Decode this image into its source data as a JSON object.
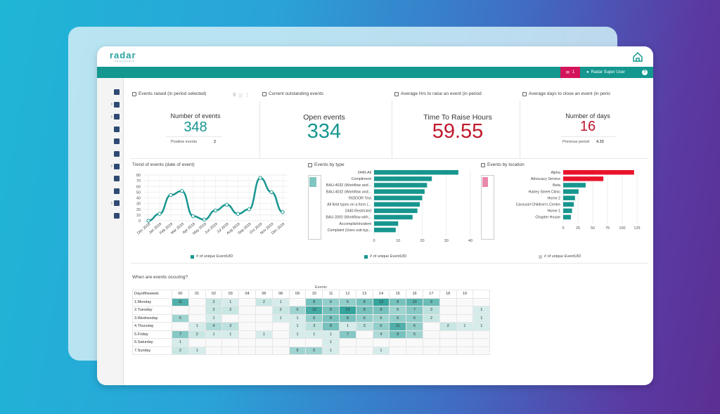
{
  "app": {
    "logo_text": "radar",
    "logo_sub": "healthcare",
    "user_label": "Radar Super User",
    "mail_count": "1"
  },
  "colors": {
    "teal": "#13978f",
    "accent": "#d4145a",
    "red_value": "#c0172b",
    "teal_value": "#17968f"
  },
  "sidebar_icons": [
    "dashboard-icon",
    "users-icon",
    "calendar-icon",
    "copy-icon",
    "bolt-icon",
    "checklist-icon",
    "mail-icon",
    "clock-icon",
    "book-icon",
    "bar-chart-icon",
    "settings-icon"
  ],
  "kpis": [
    {
      "title": "Events raised (in period selected)",
      "label": "Number of events",
      "value": "348",
      "sub_label": "Positive events",
      "sub_value": "2"
    },
    {
      "title": "Current outstanding events",
      "label": "Open events",
      "value": "334"
    },
    {
      "title": "Average Hrs to raise an event (in period",
      "label": "Time To Raise Hours",
      "value": "59.55"
    },
    {
      "title": "Average days to close an event (in perio",
      "label": "Number of days",
      "value": "16",
      "sub_label": "Previous period",
      "sub_value": "4.33"
    }
  ],
  "trend": {
    "title": "Trend of events (date of event)",
    "legend": "# of unique EventUID",
    "chart_data": {
      "type": "line",
      "categories": [
        "Dec 2018",
        "Jan 2019",
        "Feb 2019",
        "Mar 2019",
        "Apr 2019",
        "May 2019",
        "Jun 2019",
        "Jul 2019",
        "Aug 2019",
        "Sep 2019",
        "Oct 2019",
        "Nov 2019",
        "Dec 2019"
      ],
      "values": [
        0,
        12,
        45,
        52,
        8,
        2,
        18,
        28,
        12,
        20,
        75,
        50,
        15
      ],
      "ylim": [
        0,
        80
      ],
      "yticks": [
        "0",
        "10",
        "20",
        "30",
        "40",
        "50",
        "60",
        "70",
        "80"
      ],
      "grid": true
    }
  },
  "by_type": {
    "title": "Events by type",
    "legend": "# of unique EventUID",
    "chart_data": {
      "type": "bar",
      "categories": [
        "2440-All",
        "Compliment",
        "BAU-4032 (Workflow and...",
        "BAU-4032 (Workflow and...",
        "RIDDOR Test",
        "All field types on a form (...",
        "2440-Restricted",
        "BAU-3392 (Workflow with...",
        "AccomplishIncident",
        "Complaint (Uses sub-typ..."
      ],
      "values": [
        35,
        24,
        22,
        21,
        20,
        19,
        18,
        16,
        10,
        9
      ],
      "xlim": [
        0,
        40
      ],
      "xticks": [
        "0",
        "10",
        "20",
        "30",
        "40"
      ]
    }
  },
  "by_location": {
    "title": "Events by location",
    "legend": "# of unique EventUID",
    "chart_data": {
      "type": "bar",
      "categories": [
        "Alpha",
        "Advocacy Service",
        "Beta",
        "Harley Street Clinic",
        "Home 2",
        "Carousel Children's Centre",
        "Home 1",
        "Chapter House"
      ],
      "values": [
        120,
        68,
        38,
        26,
        20,
        18,
        15,
        13
      ],
      "xlim": [
        0,
        125
      ],
      "xticks": [
        "0",
        "25",
        "50",
        "75",
        "100",
        "125"
      ]
    }
  },
  "heatmap": {
    "title": "When are events occuring?",
    "group_label": "Events",
    "row_header": "Dayoftheweek",
    "hours": [
      "00",
      "01",
      "02",
      "03",
      "04",
      "05",
      "08",
      "09",
      "10",
      "11",
      "12",
      "13",
      "14",
      "15",
      "16",
      "17",
      "18",
      "19"
    ],
    "rows": [
      {
        "day": "1.Monday",
        "cells": [
          "11",
          "",
          "2",
          "1",
          "",
          "2",
          "1",
          "",
          "8",
          "6",
          "6",
          "8",
          "13",
          "8",
          "10",
          "9",
          "",
          ""
        ]
      },
      {
        "day": "2.Tuesday",
        "cells": [
          "",
          "",
          "2",
          "2",
          "",
          "",
          "2",
          "5",
          "12",
          "8",
          "13",
          "8",
          "8",
          "5",
          "7",
          "3",
          "",
          ""
        ]
      },
      {
        "day": "3.Wednesday",
        "cells": [
          "5",
          "",
          "1",
          "",
          "",
          "",
          "1",
          "1",
          "6",
          "8",
          "8",
          "6",
          "5",
          "6",
          "6",
          "2",
          "",
          ""
        ]
      },
      {
        "day": "4.Thursday",
        "cells": [
          "",
          "1",
          "4",
          "3",
          "",
          "",
          "",
          "1",
          "3",
          "8",
          "1",
          "3",
          "6",
          "11",
          "6",
          "",
          "2",
          "1"
        ]
      },
      {
        "day": "5.Friday",
        "cells": [
          "7",
          "2",
          "1",
          "1",
          "",
          "1",
          "",
          "1",
          "1",
          "1",
          "7",
          "",
          "4",
          "8",
          "5",
          "",
          "",
          ""
        ]
      },
      {
        "day": "6.Saturday",
        "cells": [
          "1",
          "",
          "",
          "",
          "",
          "",
          "",
          "",
          "",
          "1",
          "",
          "",
          "",
          "",
          "",
          "",
          "",
          ""
        ]
      },
      {
        "day": "7.Sunday",
        "cells": [
          "2",
          "1",
          "",
          "",
          "",
          "",
          "",
          "5",
          "5",
          "1",
          "",
          "",
          "1",
          "",
          "",
          "",
          "",
          ""
        ]
      }
    ],
    "extra_col": [
      "",
      "1",
      "1",
      "1",
      "",
      "",
      ""
    ],
    "max": 13
  }
}
